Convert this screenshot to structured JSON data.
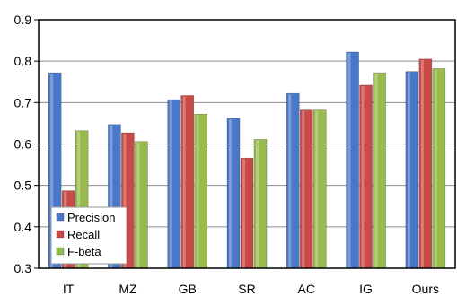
{
  "chart_data": {
    "type": "bar",
    "categories": [
      "IT",
      "MZ",
      "GB",
      "SR",
      "AC",
      "IG",
      "Ours"
    ],
    "series": [
      {
        "name": "Precision",
        "values": [
          0.772,
          0.647,
          0.707,
          0.662,
          0.722,
          0.822,
          0.775
        ]
      },
      {
        "name": "Recall",
        "values": [
          0.487,
          0.627,
          0.717,
          0.566,
          0.682,
          0.742,
          0.805
        ]
      },
      {
        "name": "F-beta",
        "values": [
          0.632,
          0.606,
          0.672,
          0.611,
          0.682,
          0.772,
          0.782
        ]
      }
    ],
    "ylim": [
      0.3,
      0.9
    ],
    "yticks": [
      "0.3",
      "0.4",
      "0.5",
      "0.6",
      "0.7",
      "0.8",
      "0.9"
    ],
    "grid": "horizontal",
    "legend_position": "bottom-left",
    "colors": {
      "Precision": "#4a78c8",
      "Recall": "#c94a47",
      "F-beta": "#97bb4d",
      "grid": "#8c8c8c",
      "frame": "#000000"
    }
  }
}
